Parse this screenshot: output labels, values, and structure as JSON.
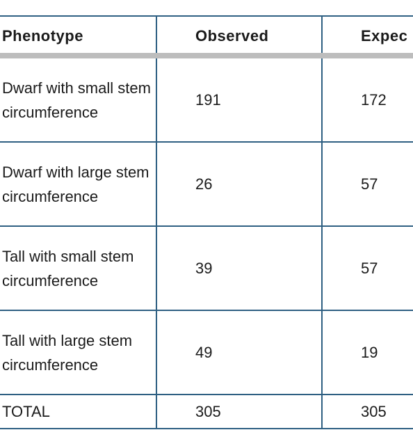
{
  "table": {
    "headers": [
      "Phenotype",
      "Observed",
      "Expec"
    ],
    "rows": [
      {
        "phenotype": "Dwarf with small stem circumference",
        "observed": "191",
        "expected": "172"
      },
      {
        "phenotype": "Dwarf with large stem circumference",
        "observed": "26",
        "expected": "57"
      },
      {
        "phenotype": "Tall with small stem circumference",
        "observed": "39",
        "expected": "57"
      },
      {
        "phenotype": "Tall with large stem circumference",
        "observed": "49",
        "expected": "19"
      }
    ],
    "total": {
      "label": "TOTAL",
      "observed": "305",
      "expected": "305"
    }
  },
  "colors": {
    "border": "#2e5f82",
    "header_rule": "#bdbdbd",
    "text": "#1a1a1a"
  }
}
